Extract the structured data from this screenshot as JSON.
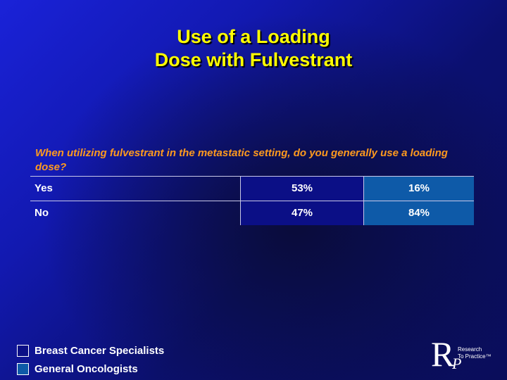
{
  "title": {
    "line1": "Use of a Loading",
    "line2": "Dose with Fulvestrant"
  },
  "question": "When utilizing fulvestrant in the metastatic setting, do you generally use a loading dose?",
  "table": {
    "rows": [
      {
        "label": "Yes",
        "breast_cancer_specialists": "53%",
        "general_oncologists": "16%"
      },
      {
        "label": "No",
        "breast_cancer_specialists": "47%",
        "general_oncologists": "84%"
      }
    ]
  },
  "legend": {
    "items": [
      {
        "label": "Breast Cancer Specialists",
        "color": "#0b0f86"
      },
      {
        "label": "General Oncologists",
        "color": "#0e5aa8"
      }
    ]
  },
  "logo": {
    "r": "R",
    "p": "P",
    "line1": "Research",
    "line2": "To Practice™"
  }
}
